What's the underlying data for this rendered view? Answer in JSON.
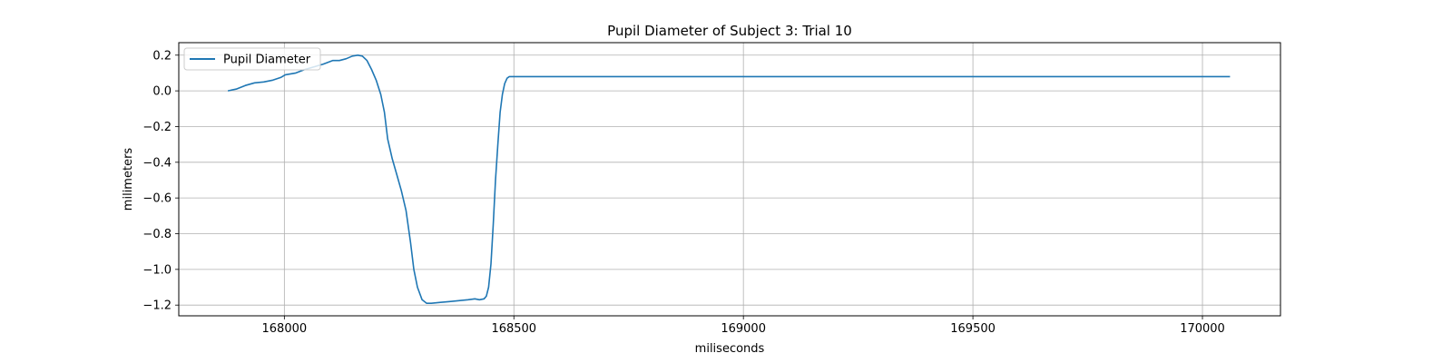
{
  "chart_data": {
    "type": "line",
    "title": "Pupil Diameter of Subject 3: Trial 10",
    "xlabel": "miliseconds",
    "ylabel": "milimeters",
    "xlim": [
      167770,
      170170
    ],
    "ylim": [
      -1.26,
      0.27
    ],
    "xticks": [
      168000,
      168500,
      169000,
      169500,
      170000
    ],
    "xtick_labels": [
      "168000",
      "168500",
      "169000",
      "169500",
      "170000"
    ],
    "yticks": [
      0.2,
      0.0,
      -0.2,
      -0.4,
      -0.6,
      -0.8,
      -1.0,
      -1.2
    ],
    "ytick_labels": [
      "0.2",
      "0.0",
      "−0.2",
      "−0.4",
      "−0.6",
      "−0.8",
      "−1.0",
      "−1.2"
    ],
    "grid": true,
    "legend_placement": "upper-left",
    "series": [
      {
        "name": "Pupil Diameter",
        "color": "#1f77b4",
        "x": [
          167877,
          167895,
          167915,
          167935,
          167955,
          167975,
          167992,
          168002,
          168025,
          168045,
          168065,
          168085,
          168105,
          168120,
          168135,
          168148,
          168160,
          168170,
          168180,
          168190,
          168200,
          168210,
          168218,
          168225,
          168235,
          168245,
          168255,
          168265,
          168275,
          168282,
          168290,
          168300,
          168310,
          168320,
          168340,
          168360,
          168380,
          168400,
          168415,
          168425,
          168435,
          168440,
          168445,
          168450,
          168455,
          168460,
          168465,
          168470,
          168475,
          168480,
          168485,
          168490,
          168495,
          168500,
          168600,
          169000,
          169500,
          170000,
          170060
        ],
        "y": [
          0.0,
          0.01,
          0.03,
          0.045,
          0.05,
          0.06,
          0.075,
          0.09,
          0.1,
          0.12,
          0.135,
          0.15,
          0.17,
          0.17,
          0.18,
          0.195,
          0.2,
          0.195,
          0.17,
          0.12,
          0.06,
          -0.02,
          -0.12,
          -0.27,
          -0.38,
          -0.47,
          -0.56,
          -0.67,
          -0.85,
          -1.0,
          -1.1,
          -1.17,
          -1.19,
          -1.19,
          -1.185,
          -1.18,
          -1.175,
          -1.17,
          -1.165,
          -1.17,
          -1.165,
          -1.15,
          -1.1,
          -0.97,
          -0.75,
          -0.5,
          -0.3,
          -0.12,
          -0.02,
          0.04,
          0.07,
          0.08,
          0.08,
          0.08,
          0.08,
          0.08,
          0.08,
          0.08,
          0.08
        ]
      }
    ]
  }
}
